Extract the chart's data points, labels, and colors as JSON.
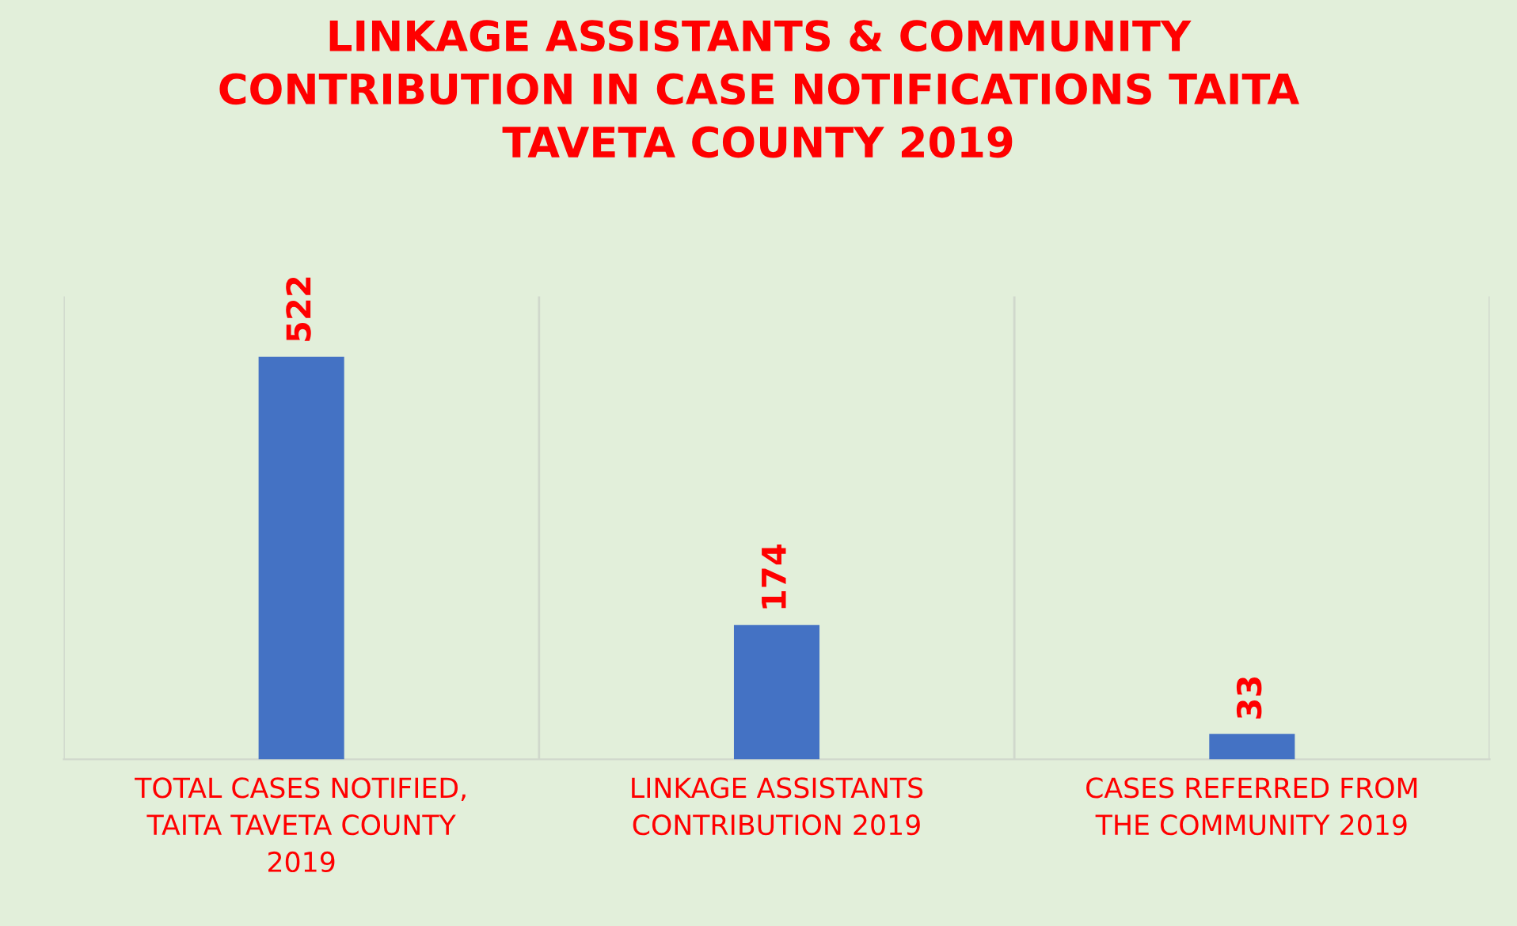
{
  "chart_data": {
    "type": "bar",
    "title": "LINKAGE ASSISTANTS & COMMUNITY CONTRIBUTION IN CASE NOTIFICATIONS TAITA TAVETA COUNTY 2019",
    "categories": [
      "TOTAL CASES NOTIFIED, TAITA TAVETA COUNTY 2019",
      "LINKAGE ASSISTANTS CONTRIBUTION 2019",
      "CASES REFERRED FROM THE COMMUNITY 2019"
    ],
    "values": [
      522,
      174,
      33
    ],
    "color": "#4472c4",
    "data_labels": true,
    "grid": "x"
  }
}
